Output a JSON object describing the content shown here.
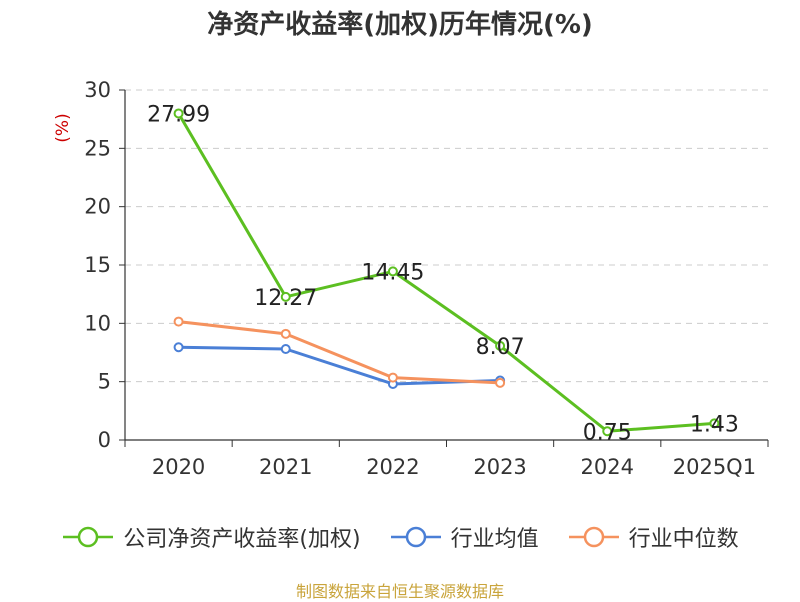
{
  "chart_data": {
    "type": "line",
    "title": "净资产收益率(加权)历年情况(%)",
    "ylabel": "(%)",
    "categories": [
      "2020",
      "2021",
      "2022",
      "2023",
      "2024",
      "2025Q1"
    ],
    "yticks": [
      "0",
      "5",
      "10",
      "15",
      "20",
      "25",
      "30"
    ],
    "ylim": [
      0,
      30
    ],
    "grid": true,
    "legend_position": "bottom",
    "series": [
      {
        "name": "公司净资产收益率(加权)",
        "color": "#5cbf21",
        "values": [
          27.99,
          12.27,
          14.45,
          8.07,
          0.75,
          1.43
        ],
        "labels": [
          "27.99",
          "12.27",
          "14.45",
          "8.07",
          "0.75",
          "1.43"
        ]
      },
      {
        "name": "行业均值",
        "color": "#4a7fd6",
        "values": [
          7.95,
          7.8,
          4.8,
          5.1,
          null,
          null
        ]
      },
      {
        "name": "行业中位数",
        "color": "#f5925e",
        "values": [
          10.15,
          9.1,
          5.35,
          4.9,
          null,
          null
        ]
      }
    ],
    "source": "制图数据来自恒生聚源数据库"
  }
}
